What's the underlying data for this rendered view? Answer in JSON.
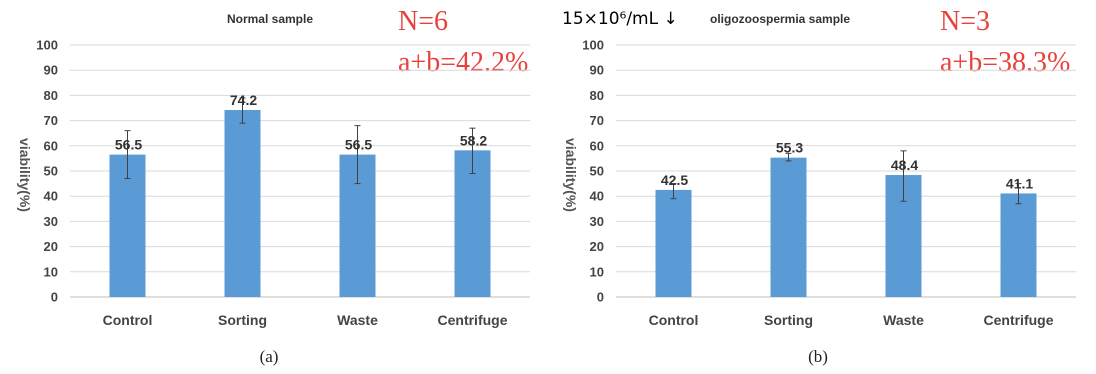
{
  "chart_data": [
    {
      "type": "bar",
      "title": "Normal sample",
      "title_prefix": "",
      "ylabel": "viability(%)",
      "ylim": [
        0,
        100
      ],
      "yticks": [
        0,
        10,
        20,
        30,
        40,
        50,
        60,
        70,
        80,
        90,
        100
      ],
      "grid": true,
      "categories": [
        "Control",
        "Sorting",
        "Waste",
        "Centrifuge"
      ],
      "values": [
        56.5,
        74.2,
        56.5,
        58.2
      ],
      "value_labels": [
        "56.5",
        "74.2",
        "56.5",
        "58.2"
      ],
      "error_bars": [
        [
          47,
          66
        ],
        [
          69,
          79
        ],
        [
          45,
          68
        ],
        [
          49,
          67
        ]
      ],
      "bar_color": "#5b9bd5",
      "annotations": [
        "N=6",
        "a+b=42.2%"
      ],
      "annotation_color": "#e8413c",
      "panel_label": "(a)"
    },
    {
      "type": "bar",
      "title": "oligozoospermia sample",
      "title_prefix": "15×10⁶/mL ↓",
      "ylabel": "viability(%)",
      "ylim": [
        0,
        100
      ],
      "yticks": [
        0,
        10,
        20,
        30,
        40,
        50,
        60,
        70,
        80,
        90,
        100
      ],
      "grid": true,
      "categories": [
        "Control",
        "Sorting",
        "Waste",
        "Centrifuge"
      ],
      "values": [
        42.5,
        55.3,
        48.4,
        41.1
      ],
      "value_labels": [
        "42.5",
        "55.3",
        "48.4",
        "41.1"
      ],
      "error_bars": [
        [
          39,
          45
        ],
        [
          54,
          57
        ],
        [
          38,
          58
        ],
        [
          37,
          45
        ]
      ],
      "bar_color": "#5b9bd5",
      "annotations": [
        "N=3",
        "a+b=38.3%"
      ],
      "annotation_color": "#e8413c",
      "panel_label": "(b)"
    }
  ]
}
